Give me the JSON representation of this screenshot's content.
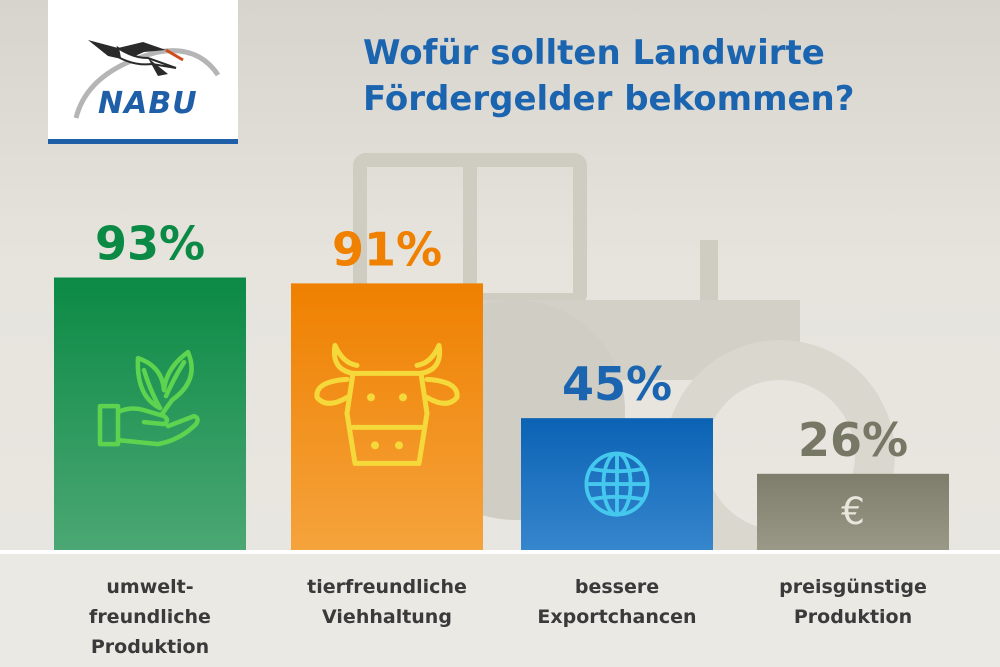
{
  "logo": {
    "text": "NABU"
  },
  "title_lines": [
    "Wofür sollten Landwirte",
    "Fördergelder bekommen?"
  ],
  "chart_data": {
    "type": "bar",
    "title": "Wofür sollten Landwirte Fördergelder bekommen?",
    "categories": [
      "umwelt-freundliche Produktion",
      "tierfreundliche Viehhaltung",
      "bessere Exportchancen",
      "preisgünstige Produktion"
    ],
    "category_lines": [
      [
        "umwelt-",
        "freundliche",
        "Produktion"
      ],
      [
        "tierfreundliche",
        "Viehhaltung"
      ],
      [
        "bessere",
        "Exportchancen"
      ],
      [
        "preisgünstige",
        "Produktion"
      ]
    ],
    "values": [
      93,
      91,
      45,
      26
    ],
    "value_labels": [
      "93%",
      "91%",
      "45%",
      "26%"
    ],
    "unit": "%",
    "ylim": [
      0,
      100
    ],
    "grid": false,
    "icons": [
      "plant-in-hand-icon",
      "cow-head-icon",
      "globe-icon",
      "euro-icon"
    ],
    "colors": {
      "bars_top": [
        "#0b8a45",
        "#ef8000",
        "#0b62b4",
        "#7e7d6c"
      ],
      "bars_bottom": [
        "#4ba773",
        "#f5a33c",
        "#3686cd",
        "#9a9987"
      ],
      "value_labels": [
        "#0b8a45",
        "#ef8000",
        "#1b64b0",
        "#777766"
      ],
      "icons": [
        "#5ed34f",
        "#f5d93a",
        "#45c8ee",
        "#e8e6dd"
      ]
    }
  }
}
